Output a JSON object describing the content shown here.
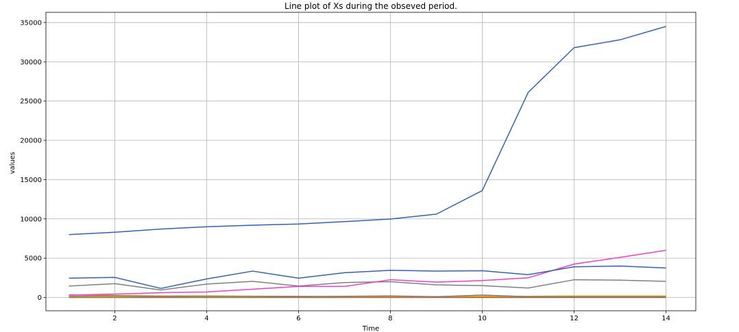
{
  "chart_data": {
    "type": "line",
    "title": "Line plot of Xs during the obseved period.",
    "xlabel": "Time",
    "ylabel": "values",
    "xlim": [
      0.5,
      14.65
    ],
    "ylim": [
      -1700,
      36300
    ],
    "x_ticks": [
      2,
      4,
      6,
      8,
      10,
      12,
      14
    ],
    "y_ticks": [
      0,
      5000,
      10000,
      15000,
      20000,
      25000,
      30000,
      35000
    ],
    "grid": true,
    "legend": "none",
    "x": [
      1,
      2,
      3,
      4,
      5,
      6,
      7,
      8,
      9,
      10,
      11,
      12,
      13,
      14
    ],
    "series": [
      {
        "color": "#2f62b5",
        "values": [
          8000,
          8300,
          8700,
          9000,
          9200,
          9350,
          9650,
          9980,
          10600,
          13600,
          26100,
          31800,
          32800,
          34500
        ]
      },
      {
        "color": "#2f62b5",
        "values": [
          2450,
          2550,
          1150,
          2350,
          3350,
          2450,
          3150,
          3450,
          3350,
          3400,
          2900,
          3900,
          4000,
          3750
        ]
      },
      {
        "color": "#e83fc9",
        "values": [
          300,
          420,
          600,
          700,
          1050,
          1400,
          1400,
          2250,
          1950,
          2150,
          2500,
          4250,
          5100,
          6000
        ]
      },
      {
        "color": "#7f7f7f",
        "values": [
          1450,
          1750,
          950,
          1700,
          2050,
          1450,
          1900,
          2000,
          1600,
          1500,
          1200,
          2250,
          2200,
          2050
        ]
      },
      {
        "color": "#7f7f7f",
        "values": [
          150,
          200,
          100,
          150,
          150,
          100,
          150,
          200,
          100,
          300,
          100,
          100,
          100,
          100
        ]
      },
      {
        "color": "#ff8c1a",
        "values": [
          350,
          250,
          200,
          200,
          150,
          150,
          100,
          100,
          100,
          100,
          100,
          100,
          100,
          100
        ]
      },
      {
        "color": "#e6c200",
        "values": [
          100,
          100,
          100,
          100,
          100,
          100,
          100,
          100,
          100,
          150,
          150,
          200,
          200,
          200
        ]
      },
      {
        "color": "#5fd12c",
        "values": [
          100,
          100,
          100,
          100,
          100,
          100,
          100,
          100,
          100,
          120,
          150,
          180,
          180,
          200
        ]
      },
      {
        "color": "#2e8b57",
        "values": [
          50,
          50,
          50,
          50,
          50,
          50,
          50,
          50,
          50,
          50,
          50,
          50,
          50,
          50
        ]
      },
      {
        "color": "#d62728",
        "values": [
          0,
          0,
          0,
          0,
          0,
          0,
          0,
          0,
          0,
          0,
          0,
          0,
          0,
          0
        ]
      }
    ]
  }
}
